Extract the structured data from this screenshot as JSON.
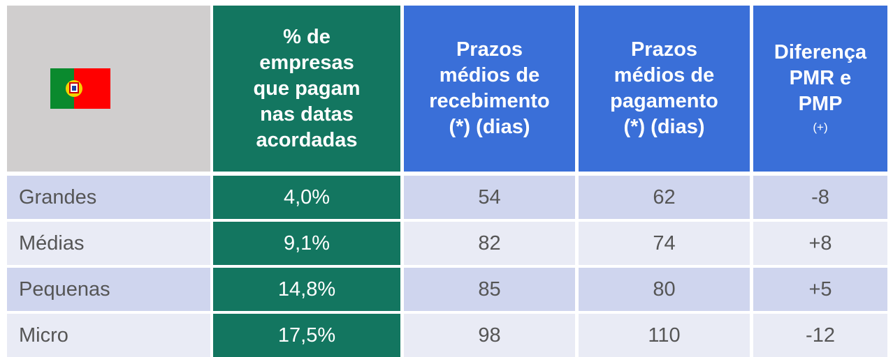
{
  "table": {
    "header": [
      {
        "lines": [
          "% de",
          "empresas",
          "que pagam",
          "nas datas",
          "acordadas"
        ]
      },
      {
        "lines": [
          "Prazos",
          "médios de",
          "recebimento",
          "(*) (dias)"
        ]
      },
      {
        "lines": [
          "Prazos",
          "médios de",
          "pagamento",
          "(*) (dias)"
        ]
      },
      {
        "lines": [
          "Diferença",
          "PMR e",
          "PMP"
        ],
        "note": "(+)"
      }
    ],
    "rows": [
      [
        "Grandes",
        "4,0%",
        "54",
        "62",
        "-8"
      ],
      [
        "Médias",
        "9,1%",
        "82",
        "74",
        "+8"
      ],
      [
        "Pequenas",
        "14,8%",
        "85",
        "80",
        "+5"
      ],
      [
        "Micro",
        "17,5%",
        "98",
        "110",
        "-12"
      ]
    ]
  }
}
